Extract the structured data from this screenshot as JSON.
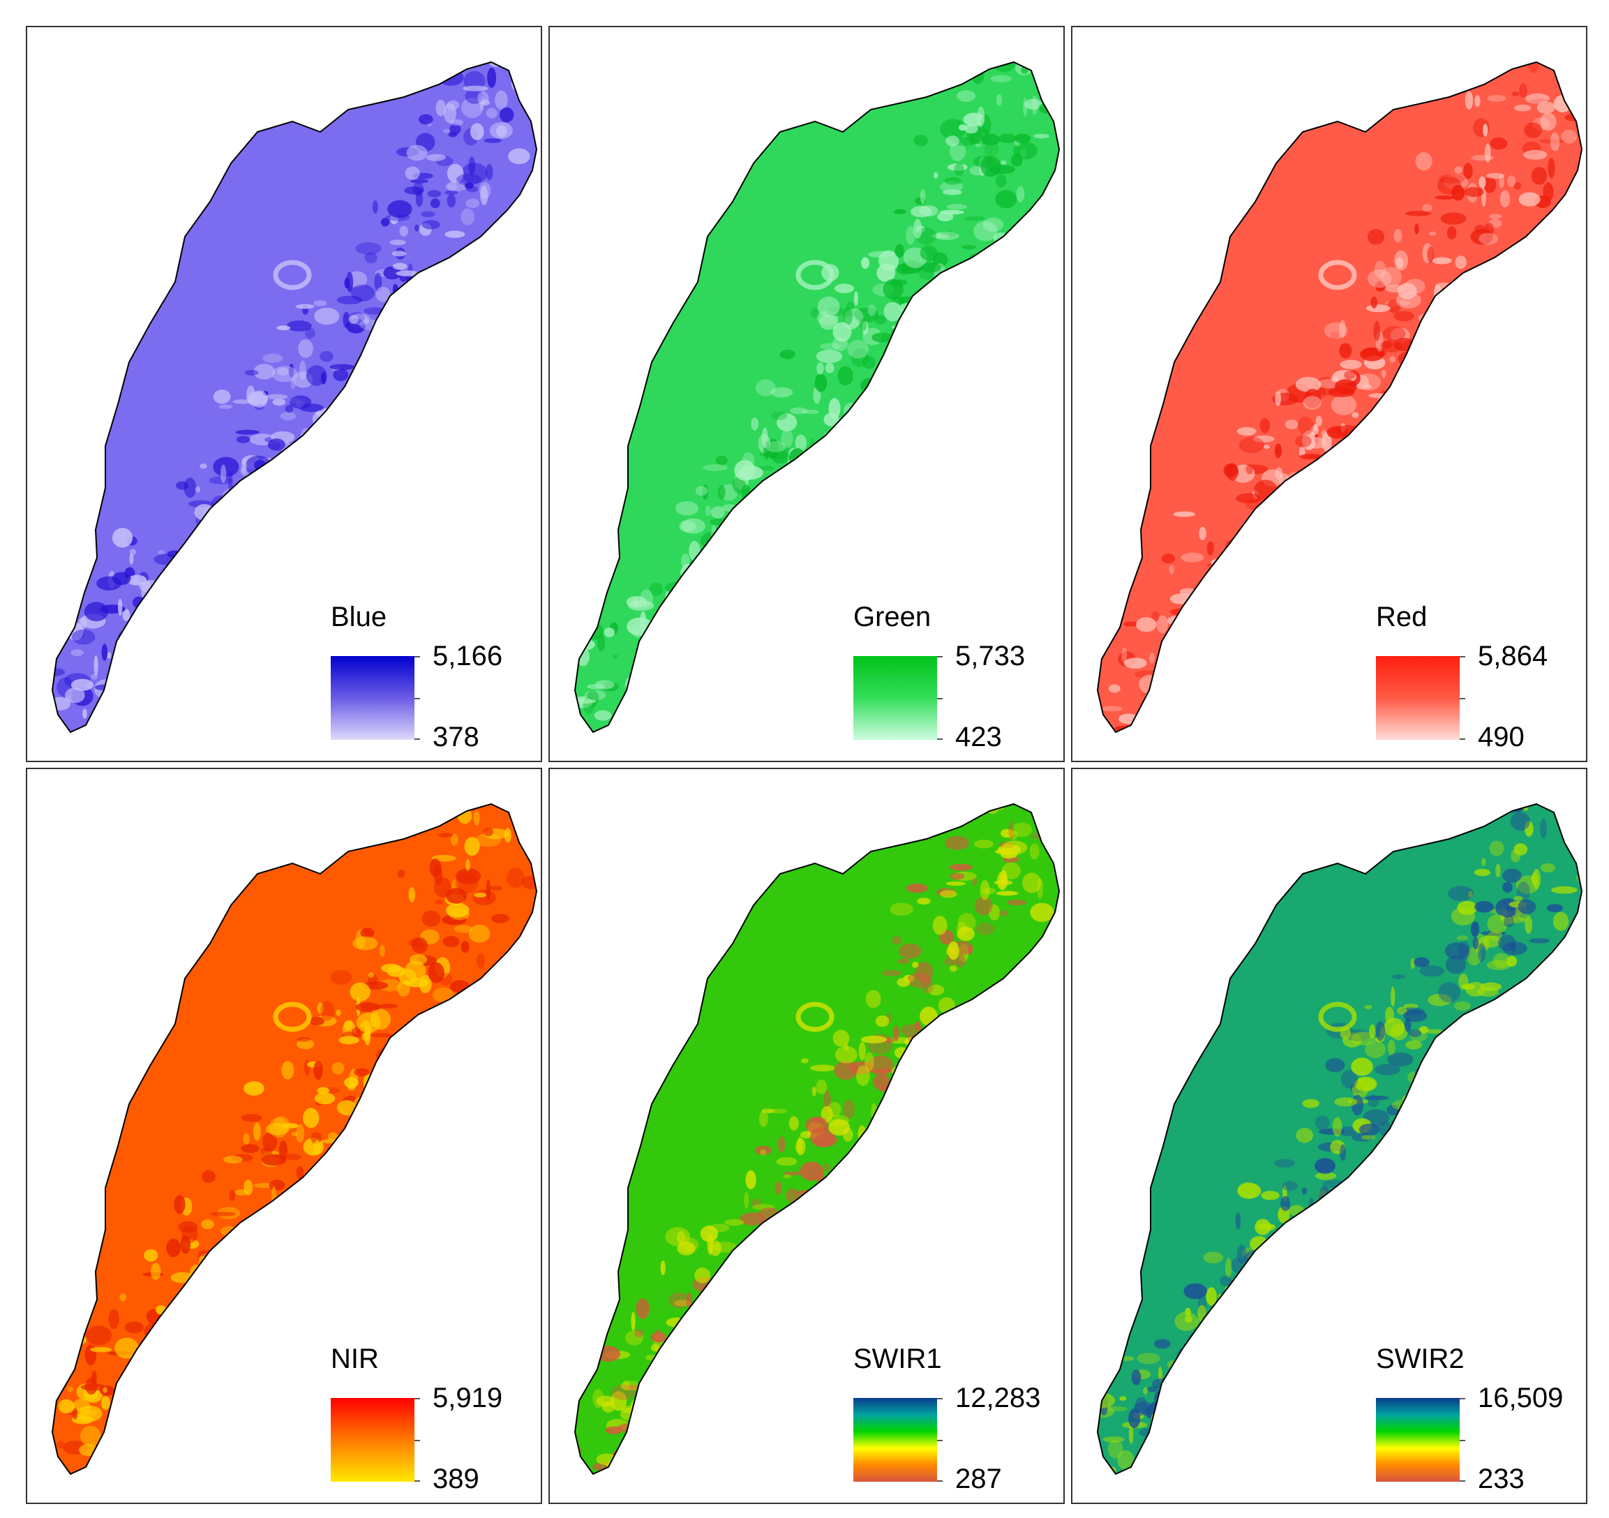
{
  "panels": [
    {
      "band": "Blue",
      "max": "5,166",
      "min": "378",
      "ramp": [
        "#0000cc",
        "#6b5be6",
        "#ddd9fb"
      ],
      "fill": "#7b6cf0",
      "light": "#c9c2fb",
      "dark": "#2814d4"
    },
    {
      "band": "Green",
      "max": "5,733",
      "min": "423",
      "ramp": [
        "#00c21a",
        "#34de5a",
        "#cdfbe0"
      ],
      "fill": "#2fd85a",
      "light": "#a8f3c0",
      "dark": "#08b92c"
    },
    {
      "band": "Red",
      "max": "5,864",
      "min": "490",
      "ramp": [
        "#ff1f0f",
        "#ff5a45",
        "#ffdcd8"
      ],
      "fill": "#ff5b48",
      "light": "#ffc7bf",
      "dark": "#ee1c0c"
    },
    {
      "band": "NIR",
      "max": "5,919",
      "min": "389",
      "ramp": [
        "#ff0000",
        "#ff7a00",
        "#ffe800"
      ],
      "fill": "#ff5a00",
      "light": "#ffd200",
      "dark": "#e82400"
    },
    {
      "band": "SWIR1",
      "max": "12,283",
      "min": "287",
      "ramp": [
        "#0b3c8c",
        "#00a3a0",
        "#00d400",
        "#ffff00",
        "#ff8a00",
        "#d9553d"
      ],
      "fill": "#33c80c",
      "light": "#d8e400",
      "dark": "#d45a3c"
    },
    {
      "band": "SWIR2",
      "max": "16,509",
      "min": "233",
      "ramp": [
        "#0b3c8c",
        "#00a3a0",
        "#00d400",
        "#ffff00",
        "#ff8a00",
        "#d9553d"
      ],
      "fill": "#18a870",
      "light": "#a8e000",
      "dark": "#1c4e98"
    }
  ]
}
